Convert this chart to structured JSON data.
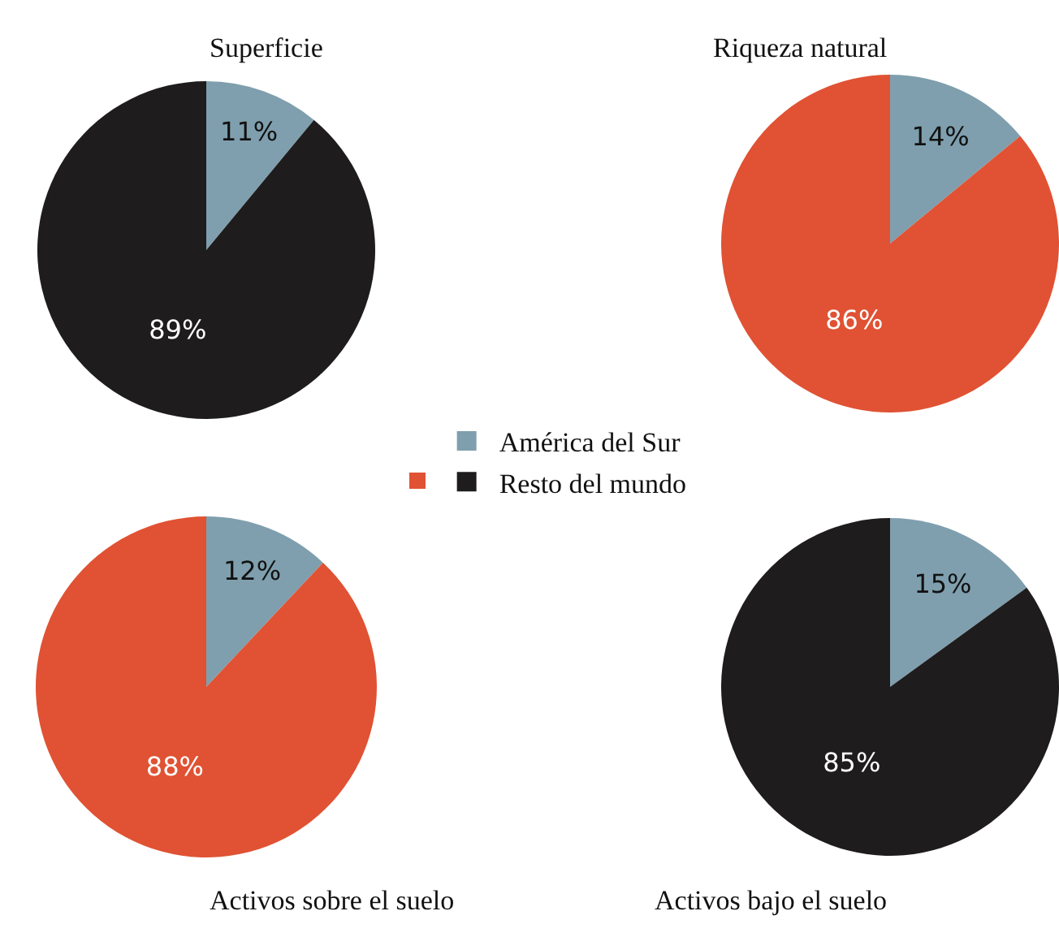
{
  "chart_data": [
    {
      "type": "pie",
      "title": "Superficie",
      "categories": [
        "América del Sur",
        "Resto del mundo"
      ],
      "values": [
        11,
        89
      ],
      "colors": [
        "#7f9fae",
        "#1e1c1d"
      ],
      "value_labels": [
        "11%",
        "89%"
      ],
      "legend": "right"
    },
    {
      "type": "pie",
      "title": "Riqueza natural",
      "categories": [
        null,
        null
      ],
      "values": [
        14,
        86
      ],
      "colors": [
        "#7f9fae",
        "#e05233"
      ],
      "value_labels": [
        "14%",
        "86%"
      ]
    },
    {
      "type": "pie",
      "title": "Activos sobre el suelo",
      "categories": [
        null,
        null
      ],
      "values": [
        12,
        88
      ],
      "colors": [
        "#7f9fae",
        "#e05233"
      ],
      "value_labels": [
        "12%",
        "88%"
      ]
    },
    {
      "type": "pie",
      "title": "Activos bajo el suelo",
      "categories": [
        null,
        null
      ],
      "values": [
        15,
        85
      ],
      "colors": [
        "#7f9fae",
        "#1e1c1d"
      ],
      "value_labels": [
        "15%",
        "85%"
      ]
    }
  ]
}
